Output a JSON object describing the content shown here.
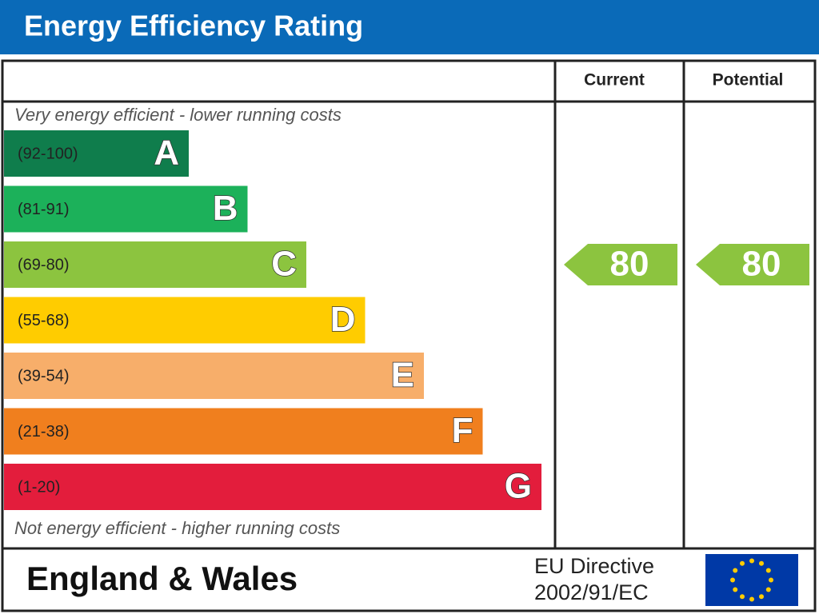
{
  "title": "Energy Efficiency Rating",
  "columns": [
    "Current",
    "Potential"
  ],
  "top_note": "Very energy efficient - lower running costs",
  "bottom_note": "Not energy efficient - higher running costs",
  "bands": [
    {
      "range": "(92-100)",
      "letter": "A",
      "color": "#0f7d4c"
    },
    {
      "range": "(81-91)",
      "letter": "B",
      "color": "#1cb15a"
    },
    {
      "range": "(69-80)",
      "letter": "C",
      "color": "#8cc43f"
    },
    {
      "range": "(55-68)",
      "letter": "D",
      "color": "#ffcc00"
    },
    {
      "range": "(39-54)",
      "letter": "E",
      "color": "#f7ae6a"
    },
    {
      "range": "(21-38)",
      "letter": "F",
      "color": "#f07f1e"
    },
    {
      "range": "(1-20)",
      "letter": "G",
      "color": "#e31d3c"
    }
  ],
  "current": 80,
  "potential": 80,
  "region": "England & Wales",
  "directive": [
    "EU Directive",
    "2002/91/EC"
  ]
}
